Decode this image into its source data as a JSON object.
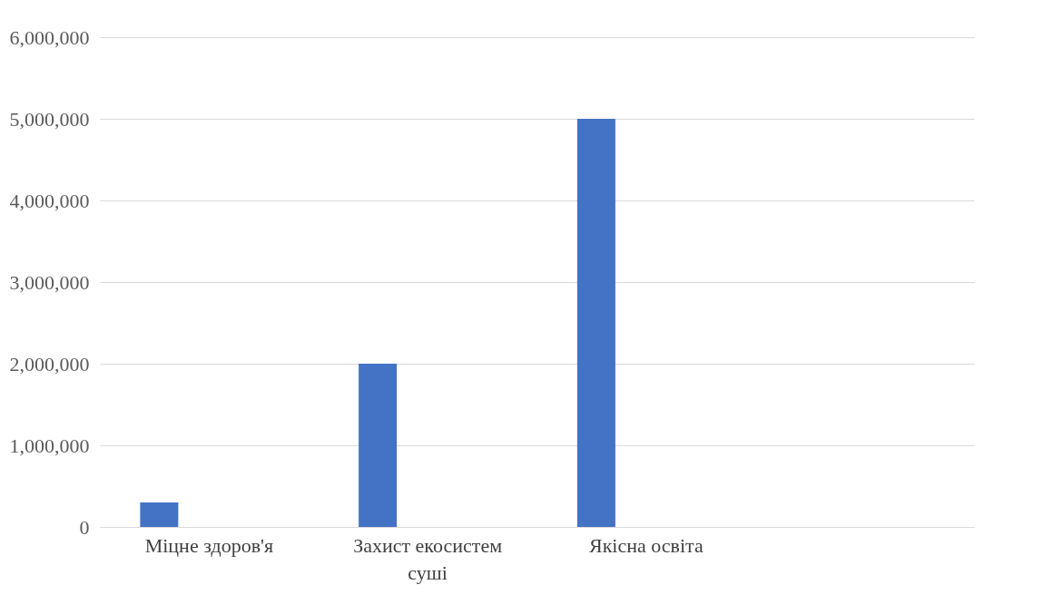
{
  "chart_data": {
    "type": "bar",
    "categories": [
      "Міцне здоров'я",
      "Захист екосистем суші",
      "Якісна освіта",
      null
    ],
    "values": [
      300000,
      2000000,
      5000000,
      null
    ],
    "color": "#4472c4",
    "ylim": [
      0,
      6000000
    ],
    "yticks": [
      0,
      {
        "value": 1000000,
        "label": "1,000,000"
      },
      {
        "value": 2000000,
        "label": "2,000,000"
      },
      {
        "value": 3000000,
        "label": "3,000,000"
      },
      {
        "value": 4000000,
        "label": "4,000,000"
      },
      {
        "value": 5000000,
        "label": "5,000,000"
      },
      {
        "value": 6000000,
        "label": "6,000,000"
      }
    ],
    "grid": "y"
  }
}
